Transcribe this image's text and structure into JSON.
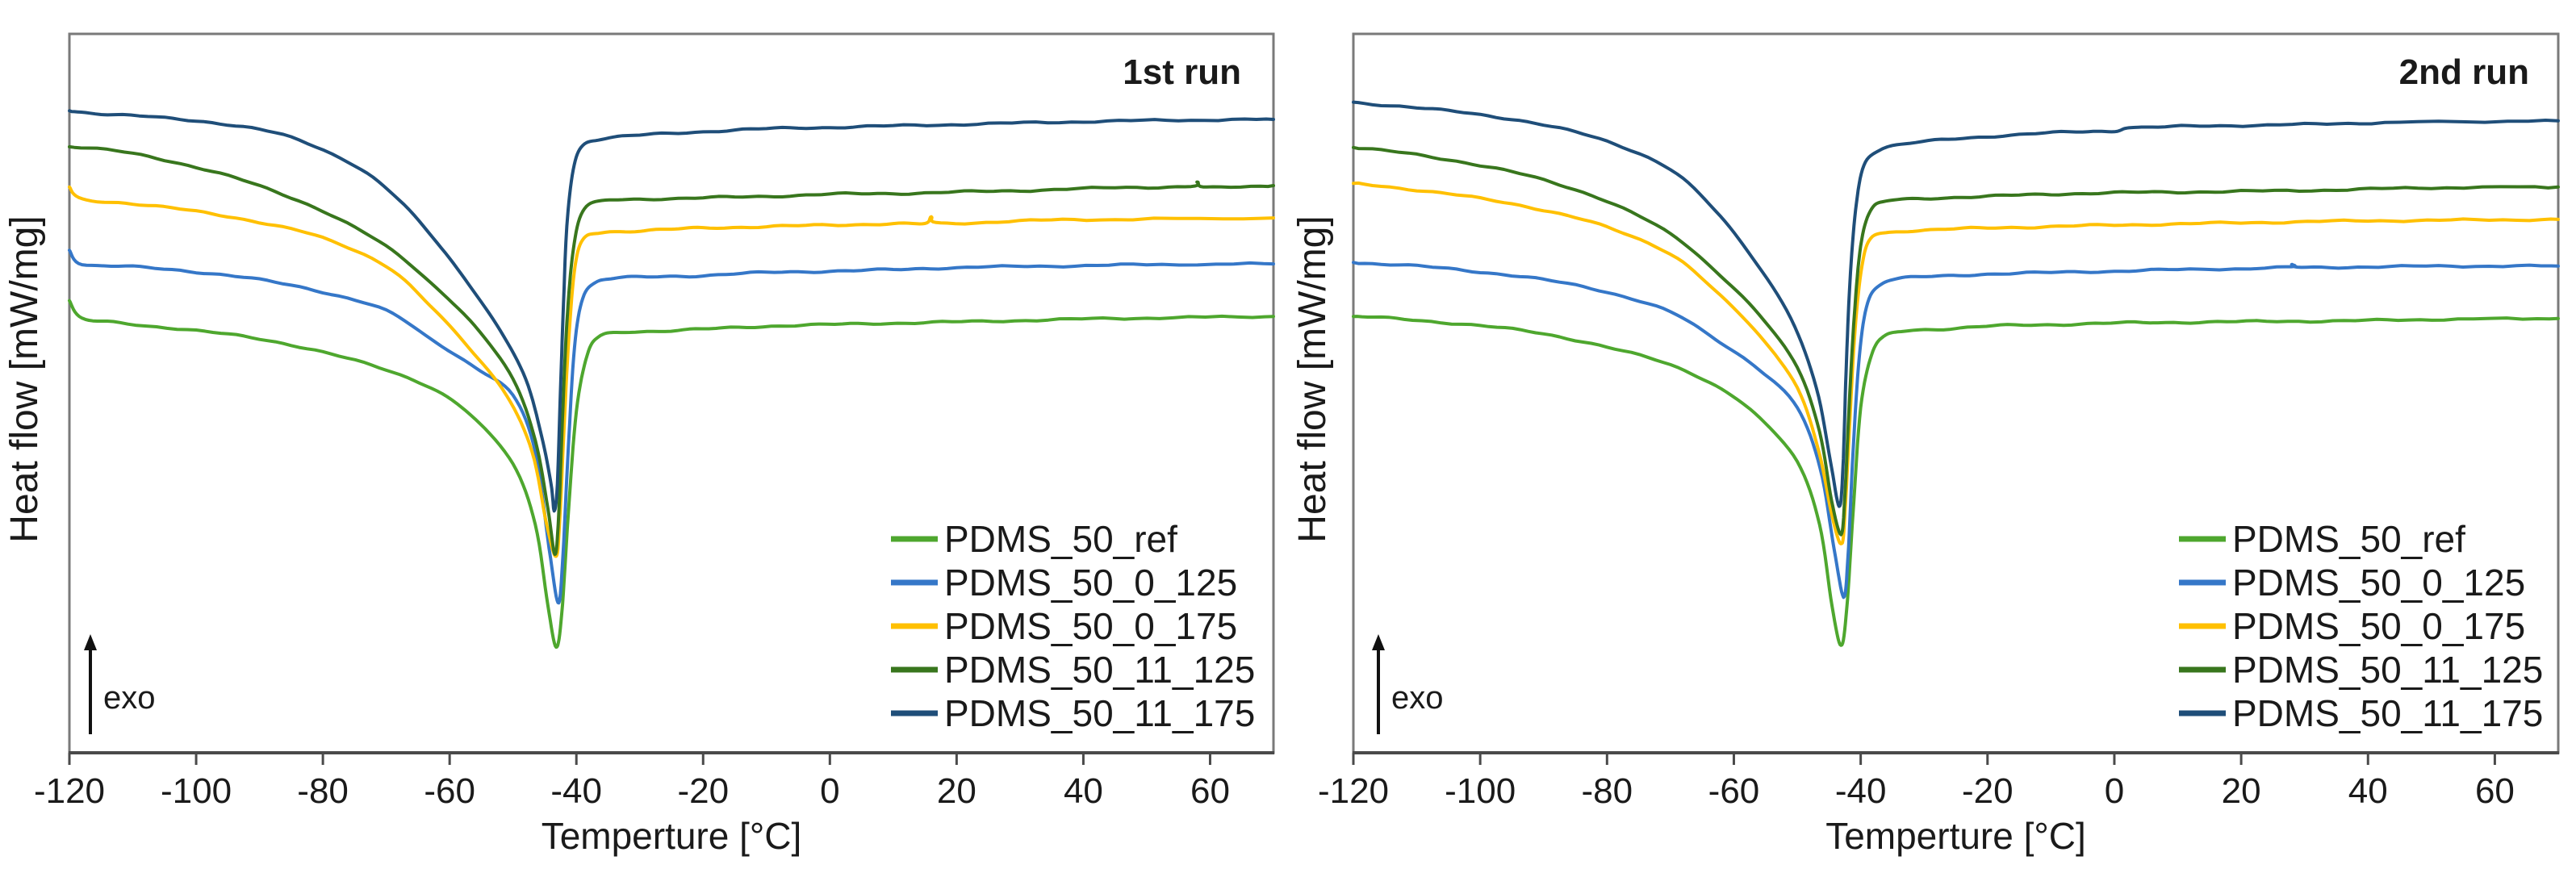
{
  "figure": {
    "background": "#ffffff",
    "axis_box_color": "#7a7a7a",
    "axis_line_color": "#4a4a4a",
    "tick_color": "#4a4a4a",
    "text_color": "#1a1a1a",
    "y_units_note": "heat flow in arbitrary units (hf = normalized fraction of plot height from bottom axis, exothermic up; no y tick labels shown)"
  },
  "chart_data": [
    {
      "type": "line",
      "panel": "left",
      "run_label": "1st run",
      "xlabel": "Temperture [°C]",
      "ylabel": "Heat flow [mW/mg]",
      "exo_label": "exo",
      "xlim": [
        -120,
        70
      ],
      "x_ticks": [
        -120,
        -100,
        -80,
        -60,
        -40,
        -20,
        0,
        20,
        40,
        60
      ],
      "grid": false,
      "legend_position": "lower right",
      "series": [
        {
          "name": "PDMS_50_ref",
          "color": "#4EA72E",
          "peak_C": -43.2,
          "T": [
            -120,
            -118,
            -112,
            -100,
            -90,
            -80,
            -70,
            -62,
            -56,
            -50,
            -46.5,
            -44.5,
            -43.2,
            -42.3,
            -41.3,
            -40,
            -38.3,
            -36.5,
            -33,
            -26,
            -18,
            -8,
            2,
            12,
            24,
            38,
            52,
            70
          ],
          "hf": [
            0.629,
            0.604,
            0.598,
            0.587,
            0.576,
            0.557,
            0.533,
            0.503,
            0.464,
            0.402,
            0.318,
            0.205,
            0.147,
            0.194,
            0.329,
            0.475,
            0.553,
            0.578,
            0.585,
            0.587,
            0.59,
            0.594,
            0.596,
            0.598,
            0.6,
            0.603,
            0.605,
            0.607
          ]
        },
        {
          "name": "PDMS_50_0_125",
          "color": "#3577C8",
          "peak_C": -42.9,
          "T": [
            -120,
            -118,
            -110,
            -100,
            -90,
            -80,
            -70,
            -63,
            -56,
            -50,
            -46.5,
            -44.3,
            -42.9,
            -42.2,
            -41.3,
            -40.3,
            -39,
            -37,
            -34,
            -28,
            -20,
            -10,
            0,
            10,
            20,
            35,
            50,
            70
          ],
          "hf": [
            0.699,
            0.68,
            0.676,
            0.669,
            0.658,
            0.641,
            0.615,
            0.576,
            0.536,
            0.497,
            0.419,
            0.284,
            0.209,
            0.262,
            0.419,
            0.564,
            0.632,
            0.654,
            0.66,
            0.662,
            0.664,
            0.668,
            0.67,
            0.672,
            0.675,
            0.677,
            0.679,
            0.68
          ]
        },
        {
          "name": "PDMS_50_0_175",
          "color": "#FFC000",
          "peak_C": -43.2,
          "T": [
            -120,
            -118,
            -110,
            -100,
            -90,
            -80,
            -70,
            -63,
            -57,
            -51,
            -47,
            -44.7,
            -43.2,
            -42.6,
            -42,
            -41.2,
            -40.2,
            -38.8,
            -36,
            -30,
            -25,
            -20,
            -10,
            0,
            10,
            15,
            16,
            17.5,
            30,
            45,
            70
          ],
          "hf": [
            0.787,
            0.77,
            0.764,
            0.753,
            0.738,
            0.716,
            0.677,
            0.621,
            0.564,
            0.497,
            0.419,
            0.318,
            0.273,
            0.329,
            0.441,
            0.576,
            0.677,
            0.716,
            0.724,
            0.726,
            0.728,
            0.73,
            0.732,
            0.734,
            0.736,
            0.736,
            0.745,
            0.736,
            0.74,
            0.742,
            0.744
          ]
        },
        {
          "name": "PDMS_50_11_125",
          "color": "#38761D",
          "peak_C": -43.4,
          "T": [
            -120,
            -110,
            -100,
            -90,
            -80,
            -70,
            -63,
            -56,
            -50,
            -46.5,
            -44.5,
            -43.4,
            -42.8,
            -42.2,
            -41.5,
            -40.5,
            -39,
            -36,
            -30,
            -20,
            -10,
            0,
            10,
            20,
            30,
            45,
            57,
            58,
            59.5,
            70
          ],
          "hf": [
            0.843,
            0.834,
            0.814,
            0.789,
            0.753,
            0.705,
            0.654,
            0.593,
            0.52,
            0.435,
            0.34,
            0.276,
            0.329,
            0.464,
            0.598,
            0.699,
            0.753,
            0.767,
            0.77,
            0.772,
            0.774,
            0.777,
            0.778,
            0.78,
            0.782,
            0.786,
            0.788,
            0.794,
            0.786,
            0.789
          ]
        },
        {
          "name": "PDMS_50_11_175",
          "color": "#1F4E79",
          "peak_C": -43.5,
          "T": [
            -120,
            -115,
            -105,
            -95,
            -85,
            -75,
            -68,
            -62,
            -57,
            -52,
            -48,
            -45.5,
            -44,
            -43.5,
            -43,
            -42.5,
            -42,
            -41.5,
            -40.5,
            -39,
            -36,
            -30,
            -20,
            -10,
            0,
            10,
            25,
            40,
            55,
            70
          ],
          "hf": [
            0.893,
            0.889,
            0.883,
            0.874,
            0.856,
            0.817,
            0.769,
            0.71,
            0.652,
            0.587,
            0.52,
            0.441,
            0.374,
            0.337,
            0.374,
            0.508,
            0.632,
            0.733,
            0.811,
            0.845,
            0.854,
            0.859,
            0.864,
            0.868,
            0.87,
            0.872,
            0.875,
            0.878,
            0.88,
            0.881
          ]
        }
      ]
    },
    {
      "type": "line",
      "panel": "right",
      "run_label": "2nd run",
      "xlabel": "Temperture [°C]",
      "ylabel": "Heat flow [mW/mg]",
      "exo_label": "exo",
      "xlim": [
        -120,
        70
      ],
      "x_ticks": [
        -120,
        -100,
        -80,
        -60,
        -40,
        -20,
        0,
        20,
        40,
        60
      ],
      "grid": false,
      "legend_position": "lower right",
      "series": [
        {
          "name": "PDMS_50_ref",
          "color": "#4EA72E",
          "peak_C": -43.1,
          "T": [
            -120,
            -112,
            -100,
            -90,
            -80,
            -70,
            -62,
            -56,
            -50,
            -46.5,
            -44.5,
            -43.1,
            -42.2,
            -41.2,
            -40,
            -38.3,
            -36.4,
            -33,
            -26,
            -18,
            -8,
            2,
            12,
            24,
            38,
            52,
            70
          ],
          "hf": [
            0.607,
            0.603,
            0.594,
            0.583,
            0.564,
            0.54,
            0.506,
            0.466,
            0.405,
            0.318,
            0.203,
            0.149,
            0.2,
            0.334,
            0.48,
            0.553,
            0.578,
            0.587,
            0.59,
            0.594,
            0.596,
            0.598,
            0.599,
            0.6,
            0.601,
            0.603,
            0.604
          ]
        },
        {
          "name": "PDMS_50_0_125",
          "color": "#3577C8",
          "peak_C": -42.7,
          "T": [
            -120,
            -110,
            -100,
            -90,
            -80,
            -70,
            -63,
            -56,
            -50,
            -46.4,
            -44.2,
            -42.7,
            -42,
            -41.2,
            -40.2,
            -38.9,
            -36.8,
            -33.5,
            -27,
            -20,
            -10,
            0,
            10,
            27,
            28,
            29.5,
            40,
            55,
            70
          ],
          "hf": [
            0.682,
            0.677,
            0.669,
            0.658,
            0.641,
            0.613,
            0.576,
            0.533,
            0.48,
            0.396,
            0.284,
            0.217,
            0.273,
            0.419,
            0.553,
            0.626,
            0.652,
            0.66,
            0.663,
            0.666,
            0.668,
            0.67,
            0.672,
            0.675,
            0.679,
            0.675,
            0.676,
            0.677,
            0.677
          ]
        },
        {
          "name": "PDMS_50_0_175",
          "color": "#FFC000",
          "peak_C": -43.0,
          "T": [
            -120,
            -110,
            -100,
            -90,
            -80,
            -70,
            -63,
            -56,
            -50,
            -46.6,
            -44.5,
            -43,
            -42.4,
            -41.7,
            -40.9,
            -39.8,
            -38.4,
            -35.5,
            -30,
            -20,
            -10,
            0,
            12,
            25,
            40,
            55,
            70
          ],
          "hf": [
            0.792,
            0.783,
            0.771,
            0.755,
            0.731,
            0.694,
            0.643,
            0.581,
            0.508,
            0.419,
            0.329,
            0.29,
            0.346,
            0.464,
            0.587,
            0.677,
            0.716,
            0.724,
            0.727,
            0.73,
            0.732,
            0.734,
            0.736,
            0.738,
            0.74,
            0.741,
            0.742
          ]
        },
        {
          "name": "PDMS_50_11_125",
          "color": "#38761D",
          "peak_C": -43.1,
          "T": [
            -120,
            -110,
            -100,
            -90,
            -80,
            -70,
            -63,
            -56,
            -50,
            -46.5,
            -44.6,
            -43.1,
            -42.5,
            -41.8,
            -41,
            -40,
            -38.5,
            -36,
            -30,
            -20,
            -10,
            0,
            10,
            20,
            35,
            50,
            70
          ],
          "hf": [
            0.842,
            0.832,
            0.817,
            0.797,
            0.767,
            0.722,
            0.671,
            0.609,
            0.536,
            0.447,
            0.351,
            0.304,
            0.357,
            0.486,
            0.609,
            0.705,
            0.753,
            0.767,
            0.771,
            0.774,
            0.777,
            0.779,
            0.78,
            0.781,
            0.783,
            0.786,
            0.787
          ]
        },
        {
          "name": "PDMS_50_11_175",
          "color": "#1F4E79",
          "peak_C": -43.4,
          "T": [
            -120,
            -110,
            -100,
            -90,
            -80,
            -70,
            -63,
            -57,
            -51,
            -47,
            -44.8,
            -43.4,
            -42.8,
            -42.3,
            -41.7,
            -40.8,
            -39.5,
            -37,
            -33,
            -25,
            -15,
            -5,
            0,
            2,
            5,
            15,
            30,
            45,
            70
          ],
          "hf": [
            0.905,
            0.897,
            0.888,
            0.873,
            0.851,
            0.811,
            0.755,
            0.688,
            0.604,
            0.508,
            0.407,
            0.343,
            0.396,
            0.531,
            0.654,
            0.755,
            0.817,
            0.839,
            0.847,
            0.854,
            0.86,
            0.864,
            0.865,
            0.87,
            0.87,
            0.872,
            0.874,
            0.877,
            0.879
          ]
        }
      ]
    }
  ]
}
